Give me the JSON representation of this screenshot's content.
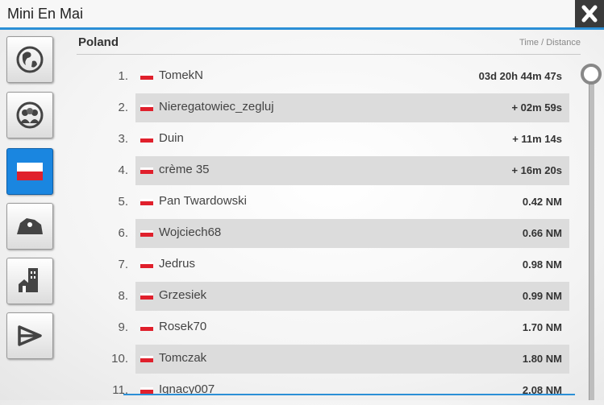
{
  "header": {
    "title": "Mini En Mai"
  },
  "list": {
    "section": "Poland",
    "column_header": "Time / Distance",
    "rows": [
      {
        "rank": "1.",
        "name": "TomekN",
        "value": "03d 20h 44m 47s"
      },
      {
        "rank": "2.",
        "name": "Nieregatowiec_zegluj",
        "value": "+ 02m 59s"
      },
      {
        "rank": "3.",
        "name": "Duin",
        "value": "+ 11m 14s"
      },
      {
        "rank": "4.",
        "name": "crème 35",
        "value": "+ 16m 20s"
      },
      {
        "rank": "5.",
        "name": "Pan Twardowski",
        "value": "0.42 NM"
      },
      {
        "rank": "6.",
        "name": "Wojciech68",
        "value": "0.66 NM"
      },
      {
        "rank": "7.",
        "name": "Jedrus",
        "value": "0.98 NM"
      },
      {
        "rank": "8.",
        "name": "Grzesiek",
        "value": "0.99 NM"
      },
      {
        "rank": "9.",
        "name": "Rosek70",
        "value": "1.70 NM"
      },
      {
        "rank": "10.",
        "name": "Tomczak",
        "value": "1.80 NM"
      },
      {
        "rank": "11.",
        "name": "Ignacy007",
        "value": "2.08 NM"
      }
    ]
  }
}
